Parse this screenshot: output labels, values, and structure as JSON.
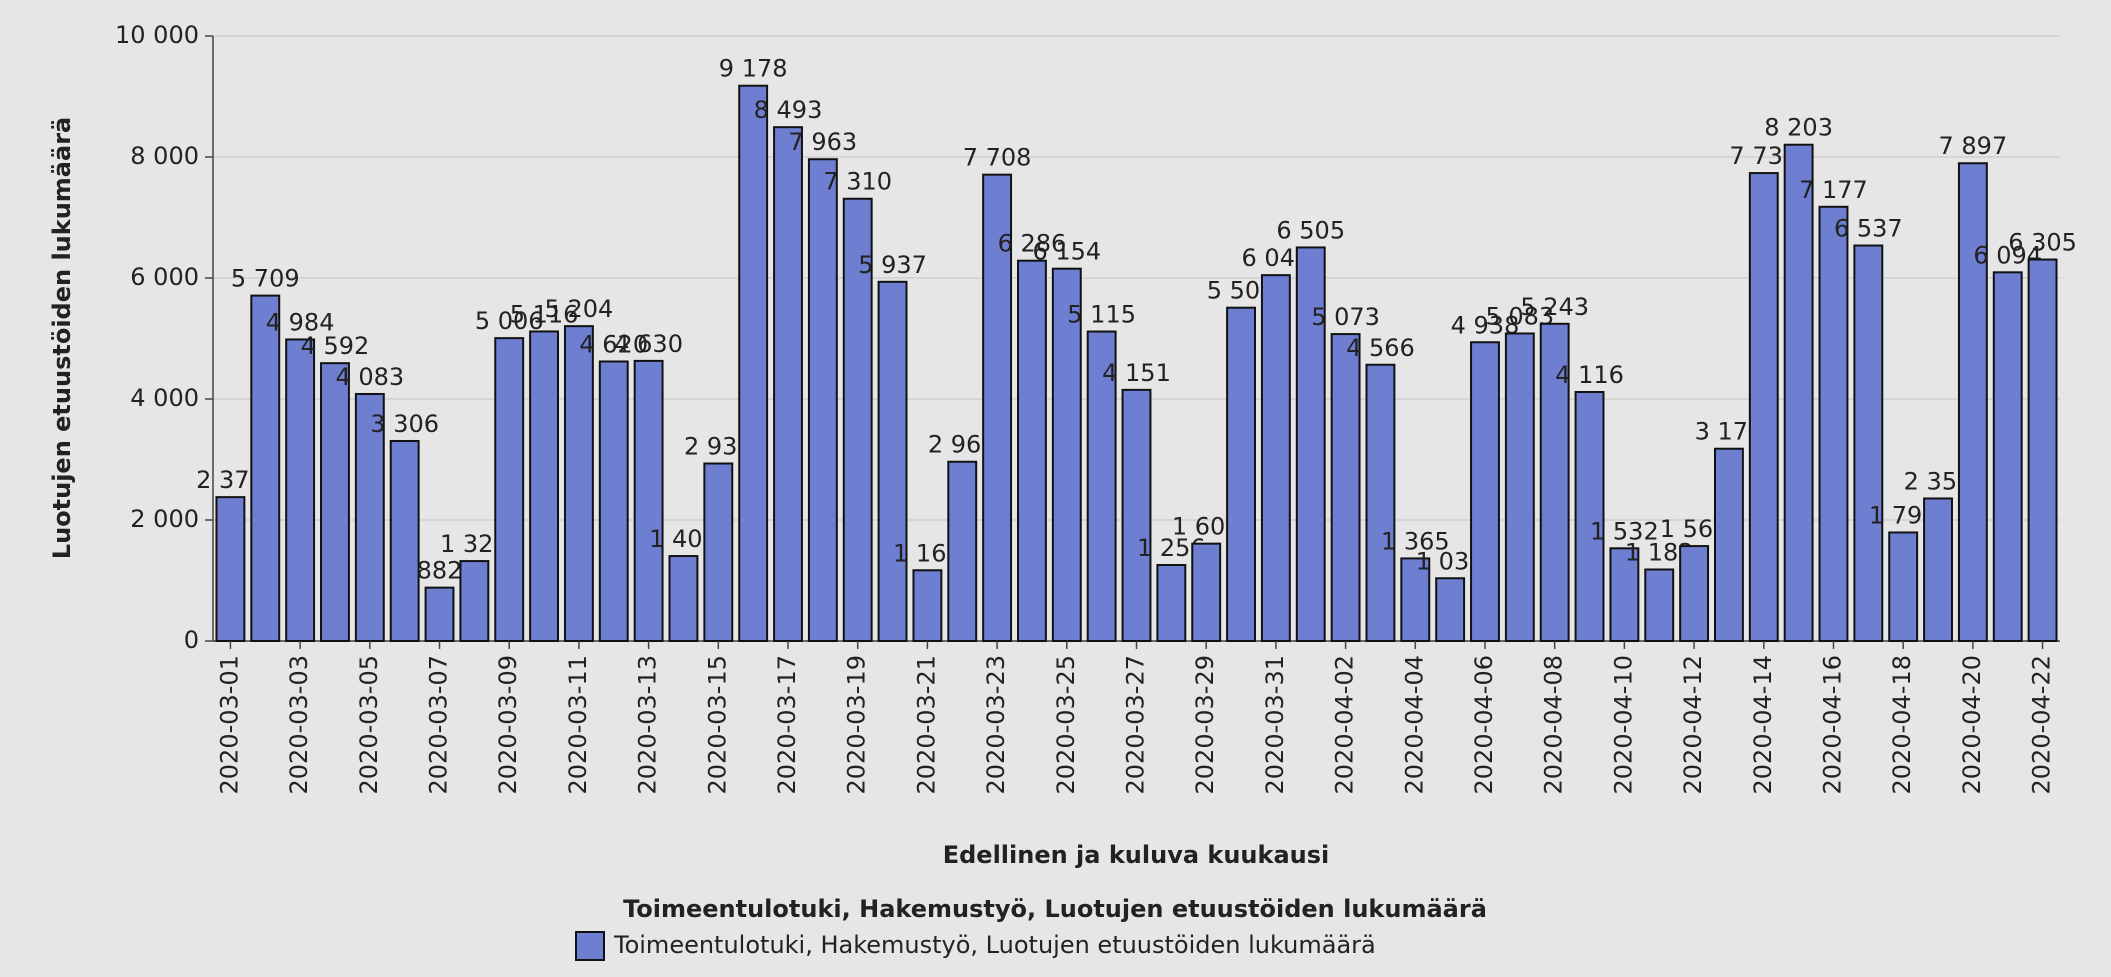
{
  "chart_data": {
    "type": "bar",
    "categories": [
      "2020-03-01",
      null,
      "2020-03-03",
      null,
      "2020-03-05",
      null,
      "2020-03-07",
      null,
      "2020-03-09",
      null,
      "2020-03-11",
      null,
      "2020-03-13",
      null,
      "2020-03-15",
      null,
      "2020-03-17",
      null,
      "2020-03-19",
      null,
      "2020-03-21",
      null,
      "2020-03-23",
      null,
      "2020-03-25",
      null,
      "2020-03-27",
      null,
      "2020-03-29",
      null,
      "2020-03-31",
      null,
      "2020-04-02",
      null,
      "2020-04-04",
      null,
      "2020-04-06",
      null,
      "2020-04-08",
      null,
      "2020-04-10",
      null,
      "2020-04-12",
      null,
      "2020-04-14",
      null,
      "2020-04-16",
      null,
      "2020-04-18",
      null,
      "2020-04-20",
      null,
      "2020-04-22"
    ],
    "series": [
      {
        "name": "Toimeentulotuki, Hakemustyö, Luotujen etuustöiden lukumäärä",
        "color": "#6e7fd2",
        "values": [
          2378,
          5709,
          4984,
          4592,
          4083,
          3306,
          882,
          1321,
          5006,
          5116,
          5204,
          4620,
          4630,
          1404,
          2934,
          9178,
          8493,
          7963,
          7310,
          5937,
          1169,
          2963,
          7708,
          6286,
          6154,
          5115,
          4151,
          1256,
          1609,
          5509,
          6047,
          6505,
          5073,
          4566,
          1365,
          1037,
          4938,
          5083,
          5243,
          4116,
          1532,
          1182,
          1569,
          3178,
          7734,
          8203,
          7177,
          6537,
          1794,
          2356,
          7897,
          6094,
          6305
        ],
        "value_labels": [
          "2 378",
          "5 709",
          "4 984",
          "4 592",
          "4 083",
          "3 306",
          "882",
          "1 321",
          "5 006",
          "5 116",
          "5 204",
          "4 620",
          "4 630",
          "1 404",
          "2 934",
          "9 178",
          "8 493",
          "7 963",
          "7 310",
          "5 937",
          "1 169",
          "2 963",
          "7 708",
          "6 286",
          "6 154",
          "5 115",
          "4 151",
          "1 256",
          "1 609",
          "5 509",
          "6 047",
          "6 505",
          "5 073",
          "4 566",
          "1 365",
          "1 037",
          "4 938",
          "5 083",
          "5 243",
          "4 116",
          "1 532",
          "1 182",
          "1 569",
          "3 178",
          "7 734",
          "8 203",
          "7 177",
          "6 537",
          "1 794",
          "2 356",
          "7 897",
          "6 094",
          "6 305"
        ]
      }
    ],
    "xlabel": "Edellinen ja kuluva kuukausi",
    "ylabel": "Luotujen etuustöiden lukumäärä",
    "legend_title": "Toimeentulotuki, Hakemustyö, Luotujen etuustöiden lukumäärä",
    "ylim": [
      0,
      10000
    ],
    "yticks": [
      0,
      {
        "value": 2000,
        "label": "2 000"
      },
      {
        "value": 4000,
        "label": "4 000"
      },
      {
        "value": 6000,
        "label": "6 000"
      },
      {
        "value": 8000,
        "label": "8 000"
      },
      {
        "value": 10000,
        "label": "10 000"
      }
    ],
    "grid": true
  }
}
